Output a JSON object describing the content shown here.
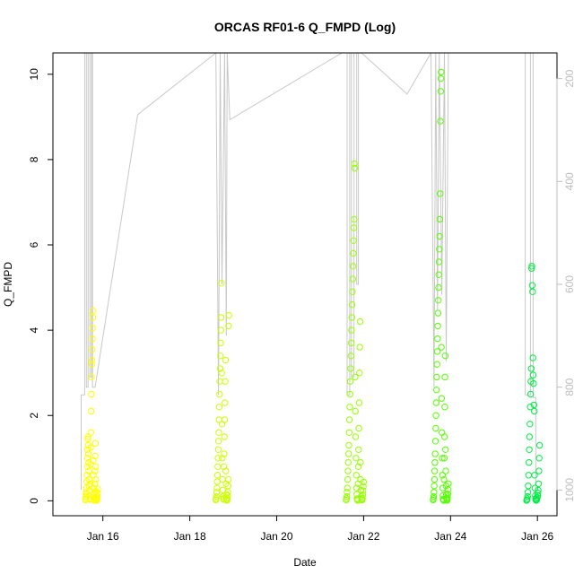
{
  "chart_data": {
    "type": "scatter",
    "title": "ORCAS RF01-6 Q_FMPD (Log)",
    "xlabel": "Date",
    "ylabel": "Q_FMPD",
    "xlim_day": [
      14.85,
      26.45
    ],
    "ylim": [
      -0.35,
      10.5
    ],
    "x_ticks": [
      {
        "label": "Jan 16",
        "day": 16
      },
      {
        "label": "Jan 18",
        "day": 18
      },
      {
        "label": "Jan 20",
        "day": 20
      },
      {
        "label": "Jan 22",
        "day": 22
      },
      {
        "label": "Jan 24",
        "day": 24
      },
      {
        "label": "Jan 26",
        "day": 26
      }
    ],
    "y_ticks": [
      "0",
      "2",
      "4",
      "6",
      "8",
      "10"
    ],
    "right_axis": {
      "color": "#bdbdbd",
      "ylim": [
        1050,
        150
      ],
      "ticks": [
        "200",
        "400",
        "600",
        "800",
        "1000"
      ]
    },
    "grid": false,
    "legend": "none",
    "point_colors": [
      "#ffff00",
      "#ccff00",
      "#99ff00",
      "#55ff00",
      "#00ee44"
    ],
    "series": [
      {
        "flight": "RF01",
        "day_start": 15.6,
        "day_end": 15.88,
        "values": [
          0.02,
          0.05,
          0.1,
          0.15,
          0.2,
          0.3,
          0.45,
          0.6,
          0.8,
          1.0,
          1.2,
          1.45,
          1.5,
          1.3,
          1.1,
          0.9,
          0.7,
          0.5,
          0.35,
          0.25,
          0.12,
          0.05,
          0.03,
          0.4,
          0.85,
          1.25,
          1.6,
          2.1,
          2.5,
          2.9,
          3.2,
          3.3,
          3.55,
          3.8,
          4.05,
          4.3,
          4.45,
          0.95,
          0.6,
          0.3,
          0.15,
          0.05,
          0.02,
          0.01,
          0.2,
          0.4,
          0.7,
          1.05,
          1.35,
          0.8,
          0.5,
          0.22,
          0.08,
          0.04,
          0.01,
          0.02,
          0.03,
          0.1,
          0.18,
          0.28
        ]
      },
      {
        "flight": "RF02",
        "day_start": 18.6,
        "day_end": 18.9,
        "values": [
          0.02,
          0.05,
          0.1,
          0.2,
          0.3,
          0.45,
          0.6,
          0.8,
          1.0,
          1.2,
          1.4,
          1.6,
          1.9,
          2.2,
          2.5,
          2.8,
          3.1,
          3.4,
          3.7,
          4.0,
          4.3,
          5.1,
          3.0,
          1.8,
          1.0,
          0.5,
          0.25,
          0.1,
          0.05,
          0.03,
          0.8,
          1.1,
          1.5,
          1.9,
          2.3,
          2.8,
          3.3,
          0.7,
          0.4,
          0.15,
          0.06,
          0.02,
          0.01,
          0.05,
          0.12,
          0.2,
          0.35,
          0.5,
          4.1,
          4.35
        ]
      },
      {
        "flight": "RF03",
        "day_start": 21.6,
        "day_end": 22.0,
        "values": [
          0.02,
          0.05,
          0.1,
          0.2,
          0.3,
          0.5,
          0.7,
          0.9,
          1.1,
          1.3,
          1.6,
          1.9,
          2.2,
          2.5,
          2.8,
          3.1,
          3.4,
          3.7,
          4.0,
          4.3,
          4.6,
          4.9,
          5.2,
          5.5,
          5.8,
          6.1,
          6.4,
          6.6,
          7.9,
          7.8,
          2.9,
          2.1,
          1.5,
          1.0,
          0.6,
          0.3,
          0.15,
          0.05,
          0.03,
          0.01,
          0.4,
          0.8,
          1.2,
          1.7,
          2.3,
          3.0,
          3.6,
          4.2,
          0.9,
          0.5,
          0.25,
          0.1,
          0.04,
          0.02,
          0.02,
          0.06,
          0.14,
          0.24,
          0.34,
          0.44
        ]
      },
      {
        "flight": "RF04",
        "day_start": 23.6,
        "day_end": 23.95,
        "values": [
          0.02,
          0.05,
          0.1,
          0.2,
          0.35,
          0.5,
          0.7,
          0.9,
          1.1,
          1.4,
          1.7,
          2.0,
          2.3,
          2.6,
          2.9,
          3.2,
          3.5,
          3.8,
          4.1,
          4.4,
          4.7,
          5.0,
          5.3,
          5.6,
          5.9,
          6.2,
          6.6,
          7.2,
          8.9,
          9.6,
          9.9,
          10.05,
          3.6,
          2.4,
          1.6,
          1.0,
          0.6,
          0.3,
          0.12,
          0.04,
          0.02,
          0.01,
          0.5,
          1.0,
          1.5,
          2.2,
          2.9,
          3.4,
          1.2,
          0.7,
          0.35,
          0.15,
          0.06,
          0.03,
          0.01,
          0.04,
          0.09,
          0.16,
          0.26,
          0.4
        ]
      },
      {
        "flight": "RF05",
        "day_start": 25.75,
        "day_end": 26.05,
        "values": [
          0.01,
          0.02,
          0.05,
          0.1,
          0.2,
          0.35,
          0.6,
          0.9,
          1.2,
          1.5,
          1.8,
          2.2,
          2.5,
          2.8,
          3.1,
          5.45,
          5.5,
          5.05,
          4.9,
          3.35,
          2.95,
          2.75,
          2.25,
          2.1,
          0.6,
          0.3,
          0.12,
          0.05,
          0.02,
          0.01,
          0.02,
          0.04,
          0.08,
          0.12,
          0.18,
          0.25,
          0.4,
          0.7,
          1.0,
          1.3
        ]
      }
    ],
    "altitude_line": {
      "color": "#c8c8c8",
      "days": [
        15.5,
        15.5,
        15.58,
        15.58,
        15.62,
        15.62,
        15.66,
        15.66,
        15.7,
        15.7,
        15.74,
        15.74,
        15.76,
        15.76,
        15.82,
        16.8,
        18.6,
        18.6,
        18.66,
        18.66,
        18.7,
        18.7,
        18.74,
        18.74,
        18.8,
        18.8,
        18.84,
        18.84,
        18.86,
        18.86,
        18.92,
        21.5,
        21.62,
        21.62,
        21.68,
        21.68,
        21.72,
        21.72,
        21.78,
        21.78,
        21.84,
        21.84,
        21.88,
        21.88,
        21.95,
        23.0,
        23.55,
        23.55,
        23.62,
        23.62,
        23.66,
        23.66,
        23.7,
        23.7,
        23.74,
        23.74,
        23.8,
        23.8,
        23.86,
        23.86,
        23.9,
        23.9,
        23.95,
        25.2,
        25.72,
        25.72,
        25.84,
        25.84,
        25.9,
        25.9,
        25.96,
        25.96
      ],
      "pressures": [
        1000,
        815,
        815,
        150,
        150,
        800,
        800,
        150,
        150,
        780,
        780,
        150,
        150,
        800,
        800,
        270,
        150,
        150,
        815,
        815,
        150,
        150,
        600,
        600,
        150,
        150,
        700,
        700,
        150,
        150,
        280,
        150,
        150,
        815,
        815,
        150,
        150,
        780,
        780,
        150,
        150,
        600,
        600,
        150,
        150,
        230,
        150,
        150,
        800,
        800,
        150,
        150,
        650,
        650,
        150,
        150,
        620,
        620,
        150,
        150,
        750,
        750,
        150,
        150,
        150,
        815,
        815,
        150,
        150,
        820,
        820,
        1000
      ]
    }
  }
}
